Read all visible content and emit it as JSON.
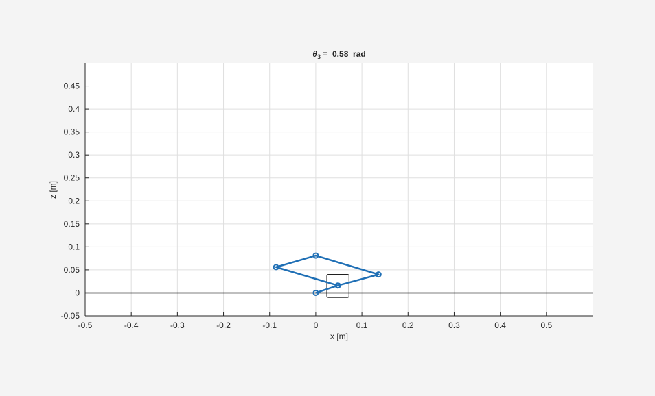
{
  "chart_data": {
    "type": "line",
    "title": {
      "symbol": "θ",
      "subscript": "3",
      "rest": " =  0.58  rad"
    },
    "xlabel": "x [m]",
    "ylabel": "z [m]",
    "xlim": [
      -0.5,
      0.6
    ],
    "ylim": [
      -0.05,
      0.5
    ],
    "xticks": [
      -0.5,
      -0.4,
      -0.3,
      -0.2,
      -0.1,
      0,
      0.1,
      0.2,
      0.3,
      0.4,
      0.5
    ],
    "xtick_labels": [
      "-0.5",
      "-0.4",
      "-0.3",
      "-0.2",
      "-0.1",
      "0",
      "0.1",
      "0.2",
      "0.3",
      "0.4",
      "0.5"
    ],
    "yticks": [
      -0.05,
      0,
      0.05,
      0.1,
      0.15,
      0.2,
      0.25,
      0.3,
      0.35,
      0.4,
      0.45
    ],
    "ytick_labels": [
      "-0.05",
      "0",
      "0.05",
      "0.1",
      "0.15",
      "0.2",
      "0.25",
      "0.3",
      "0.35",
      "0.4",
      "0.45"
    ],
    "grid": true,
    "ground_line": {
      "y": 0,
      "color": "#000000"
    },
    "linkage": {
      "color": "#1f6fb5",
      "points": [
        {
          "x": 0.0,
          "y": 0.0
        },
        {
          "x": 0.048,
          "y": 0.016
        },
        {
          "x": 0.136,
          "y": 0.04
        },
        {
          "x": 0.0,
          "y": 0.081
        },
        {
          "x": -0.086,
          "y": 0.056
        },
        {
          "x": 0.048,
          "y": 0.016
        }
      ]
    },
    "block": {
      "x": [
        0.024,
        0.072
      ],
      "y": [
        -0.01,
        0.04
      ],
      "stroke": "#000000"
    }
  }
}
